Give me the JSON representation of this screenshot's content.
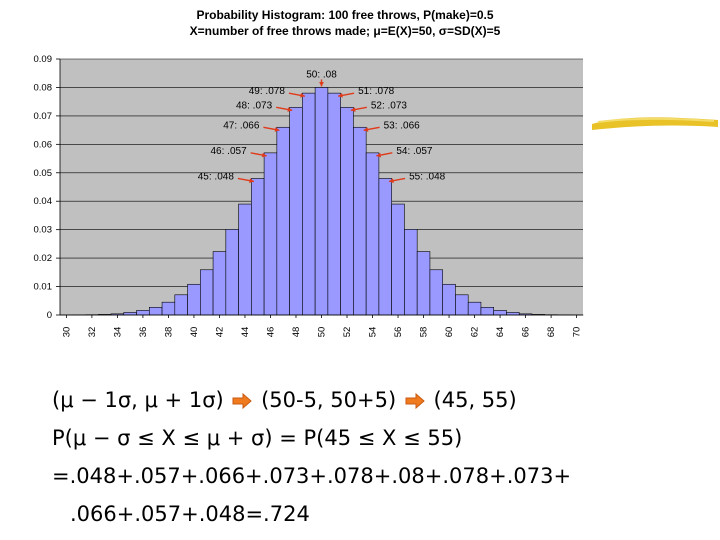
{
  "chart_data": {
    "type": "bar",
    "title_lines": [
      "Probability Histogram: 100 free throws, P(make)=0.5",
      "X=number of free throws made; μ=E(X)=50, σ=SD(X)=5"
    ],
    "x": [
      30,
      31,
      32,
      33,
      34,
      35,
      36,
      37,
      38,
      39,
      40,
      41,
      42,
      43,
      44,
      45,
      46,
      47,
      48,
      49,
      50,
      51,
      52,
      53,
      54,
      55,
      56,
      57,
      58,
      59,
      60,
      61,
      62,
      63,
      64,
      65,
      66,
      67,
      68,
      69,
      70
    ],
    "values": [
      2e-05,
      5e-05,
      0.0001,
      0.0002,
      0.0004,
      0.0009,
      0.0016,
      0.0027,
      0.0045,
      0.0071,
      0.0108,
      0.0159,
      0.0223,
      0.0301,
      0.039,
      0.048,
      0.057,
      0.066,
      0.073,
      0.078,
      0.08,
      0.078,
      0.073,
      0.066,
      0.057,
      0.048,
      0.039,
      0.0301,
      0.0223,
      0.0159,
      0.0108,
      0.0071,
      0.0045,
      0.0027,
      0.0016,
      0.0009,
      0.0004,
      0.0002,
      0.0001,
      5e-05,
      2e-05
    ],
    "x_tick_labels": [
      "30",
      "32",
      "34",
      "36",
      "38",
      "40",
      "42",
      "44",
      "46",
      "48",
      "50",
      "52",
      "54",
      "56",
      "58",
      "60",
      "62",
      "64",
      "66",
      "68",
      "70"
    ],
    "y_tick_labels": [
      "0",
      "0.01",
      "0.02",
      "0.03",
      "0.04",
      "0.05",
      "0.06",
      "0.07",
      "0.08",
      "0.09"
    ],
    "ylim": [
      0,
      0.09
    ],
    "grid": true,
    "bar_color": "#9999ff",
    "plot_bg": "#c0c0c0",
    "annotation_color": "#e03a1a",
    "annotations": [
      {
        "x": 45,
        "label": "45: .048",
        "side": "left"
      },
      {
        "x": 46,
        "label": "46: .057",
        "side": "left"
      },
      {
        "x": 47,
        "label": "47: .066",
        "side": "left"
      },
      {
        "x": 48,
        "label": "48: .073",
        "side": "left"
      },
      {
        "x": 49,
        "label": "49: .078",
        "side": "left"
      },
      {
        "x": 50,
        "label": "50: .08",
        "side": "top"
      },
      {
        "x": 51,
        "label": "51: .078",
        "side": "right"
      },
      {
        "x": 52,
        "label": "52: .073",
        "side": "right"
      },
      {
        "x": 53,
        "label": "53: .066",
        "side": "right"
      },
      {
        "x": 54,
        "label": "54: .057",
        "side": "right"
      },
      {
        "x": 55,
        "label": "55: .048",
        "side": "right"
      }
    ]
  },
  "formulas": {
    "line1": {
      "part1": "(μ − 1σ, μ + 1σ)",
      "part2": "(50-5, 50+5)",
      "part3": "(45, 55)"
    },
    "line2": "P(μ − σ ≤ X ≤ μ + σ) = P(45 ≤ X ≤ 55)",
    "line3": "=.048+.057+.066+.073+.078+.08+.078+.073+",
    "line4": ".066+.057+.048=.724"
  },
  "colors": {
    "arrow_fill": "#f07a1e",
    "highlight_stroke": "#e8c227"
  }
}
